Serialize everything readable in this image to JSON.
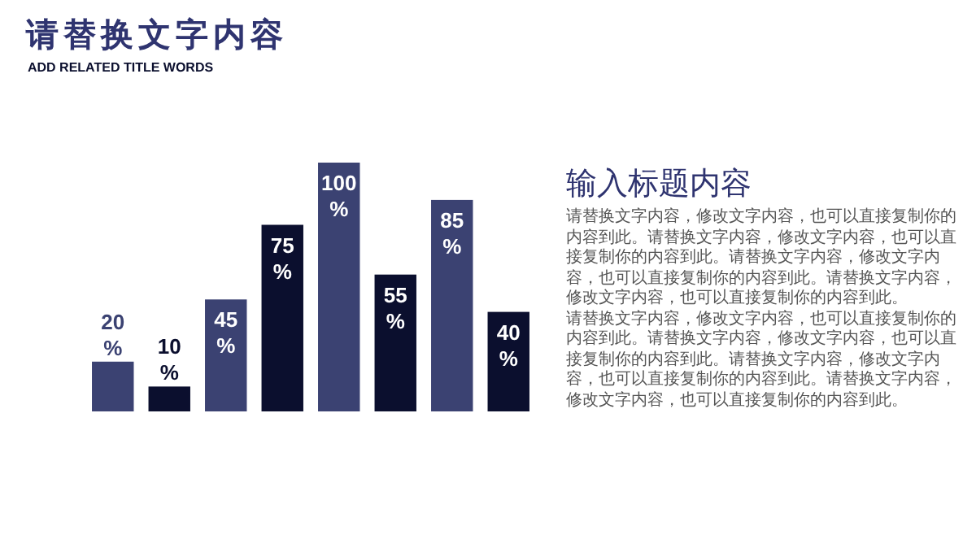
{
  "chart_data": {
    "type": "bar",
    "title": "请替换文字内容",
    "subtitle": "ADD RELATED TITLE WORDS",
    "categories": [
      null,
      null,
      null,
      null,
      null,
      null,
      null,
      null
    ],
    "series": [
      {
        "colors": [
          "#3b4272",
          "#0b0f2e",
          "#3b4272",
          "#0b0f2e",
          "#3b4272",
          "#0b0f2e",
          "#3b4272",
          "#0b0f2e"
        ],
        "values": [
          20,
          10,
          45,
          75,
          100,
          55,
          85,
          40
        ],
        "value_labels": [
          "20\n%",
          "10\n%",
          "45\n%",
          "75\n%",
          "100\n%",
          "55\n%",
          "85\n%",
          "40\n%"
        ]
      }
    ],
    "annotations": [
      "输入标题内容",
      "请替换文字内容，修改文字内容，也可以直接复制你的内容到此。请替换文字内容，修改文字内容，也可以直接复制你的内容到此。请替换文字内容，修改文字内容，也可以直接复制你的内容到此。请替换文字内容，修改文字内容，也可以直接复制你的内容到此。",
      "请替换文字内容，修改文字内容，也可以直接复制你的内容到此。请替换文字内容，修改文字内容，也可以直接复制你的内容到此。请替换文字内容，修改文字内容，也可以直接复制你的内容到此。请替换文字内容，修改文字内容，也可以直接复制你的内容到此。"
    ]
  }
}
